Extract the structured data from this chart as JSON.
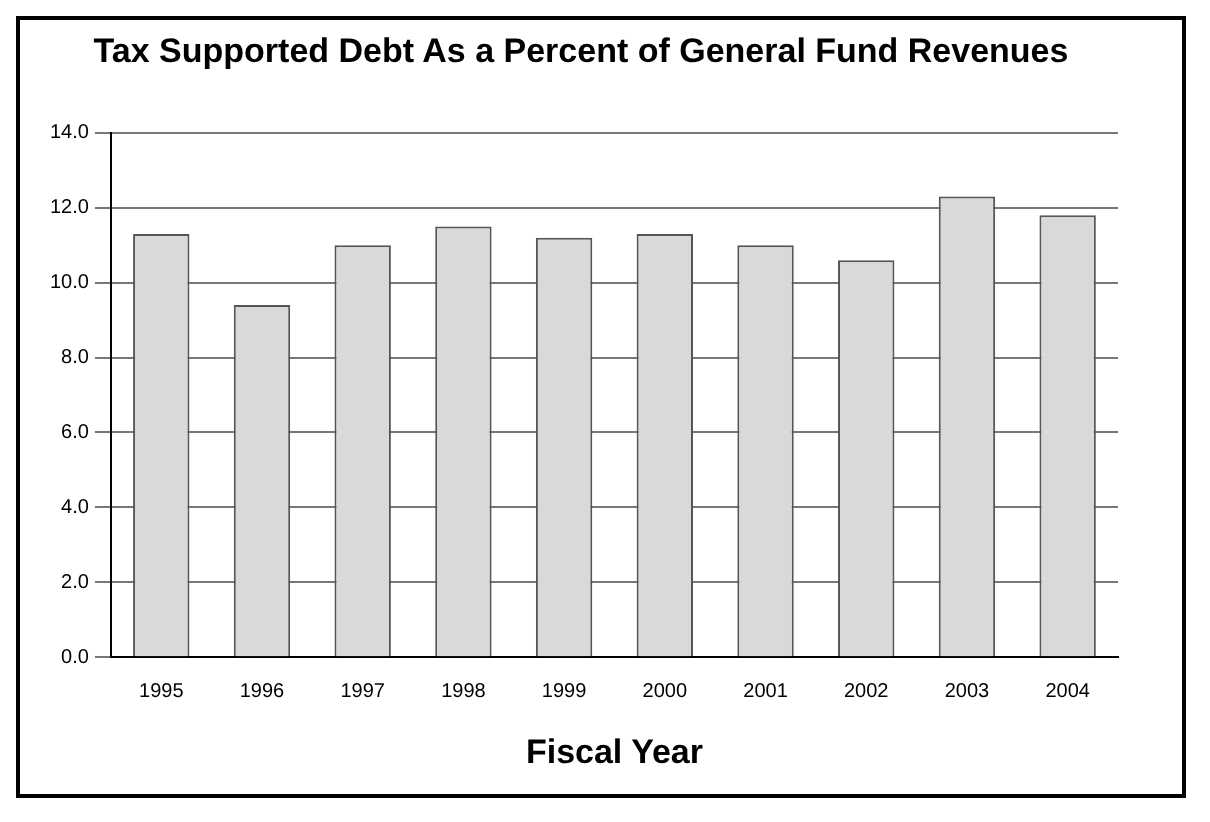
{
  "chart_data": {
    "type": "bar",
    "title": "Tax Supported Debt As a Percent of General Fund Revenues",
    "xlabel": "Fiscal Year",
    "categories": [
      "1995",
      "1996",
      "1997",
      "1998",
      "1999",
      "2000",
      "2001",
      "2002",
      "2003",
      "2004"
    ],
    "values": [
      11.3,
      9.4,
      11.0,
      11.5,
      11.2,
      11.3,
      11.0,
      10.6,
      12.3,
      11.8
    ],
    "color": "#d9d9d9",
    "ylim": [
      0,
      14
    ],
    "yticks": [
      {
        "value": 0,
        "label": "0.0"
      },
      {
        "value": 2,
        "label": "2.0"
      },
      {
        "value": 4,
        "label": "4.0"
      },
      {
        "value": 6,
        "label": "6.0"
      },
      {
        "value": 8,
        "label": "8.0"
      },
      {
        "value": 10,
        "label": "10.0"
      },
      {
        "value": 12,
        "label": "12.0"
      },
      {
        "value": 14,
        "label": "14.0"
      }
    ],
    "grid": "y"
  }
}
